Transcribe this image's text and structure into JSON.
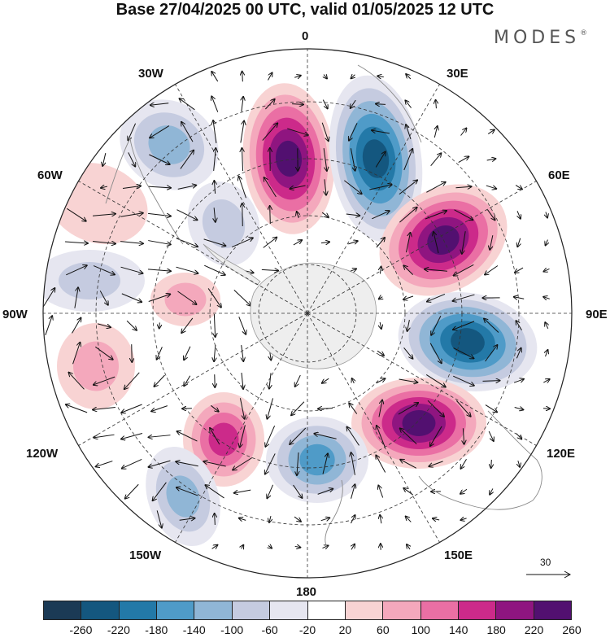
{
  "title": "Base 27/04/2025 00 UTC, valid 01/05/2025 12 UTC",
  "brand": "MODES",
  "brand_mark": "®",
  "longitude_labels": {
    "top": "0",
    "top_left": "30W",
    "top_right": "30E",
    "upper_left": "60W",
    "upper_right": "60E",
    "left": "90W",
    "right": "90E",
    "lower_left": "120W",
    "lower_right": "120E",
    "bottom_left": "150W",
    "bottom_right": "150E",
    "bottom": "180"
  },
  "reference_vector": {
    "label": "30"
  },
  "colorbar": {
    "tick_labels": [
      "-260",
      "-220",
      "-180",
      "-140",
      "-100",
      "-60",
      "-20",
      "20",
      "60",
      "100",
      "140",
      "180",
      "220",
      "260"
    ],
    "colors": [
      "#1b3a55",
      "#14577f",
      "#2379a8",
      "#4f9bc8",
      "#90b6d6",
      "#c5cbe0",
      "#e6e6f0",
      "#ffffff",
      "#f8d3d3",
      "#f4a8bc",
      "#ea6fa4",
      "#cc2a8a",
      "#8f1580",
      "#521070"
    ]
  },
  "anomalies": [
    {
      "name": "neg-30W-upper",
      "value": -130
    },
    {
      "name": "pos-0",
      "value": 230
    },
    {
      "name": "neg-20E",
      "value": -240
    },
    {
      "name": "pos-50E",
      "value": 230
    },
    {
      "name": "neg-90E",
      "value": -250
    },
    {
      "name": "pos-120E",
      "value": 230
    },
    {
      "name": "neg-170E",
      "value": -170
    },
    {
      "name": "pos-150W",
      "value": 170
    },
    {
      "name": "neg-145W",
      "value": -110
    },
    {
      "name": "pos-105W",
      "value": 90
    },
    {
      "name": "pos-60W",
      "value": 60
    },
    {
      "name": "neg-80W",
      "value": -60
    },
    {
      "name": "neg-40W",
      "value": -90
    },
    {
      "name": "pos-80W-inner",
      "value": 90
    }
  ]
}
